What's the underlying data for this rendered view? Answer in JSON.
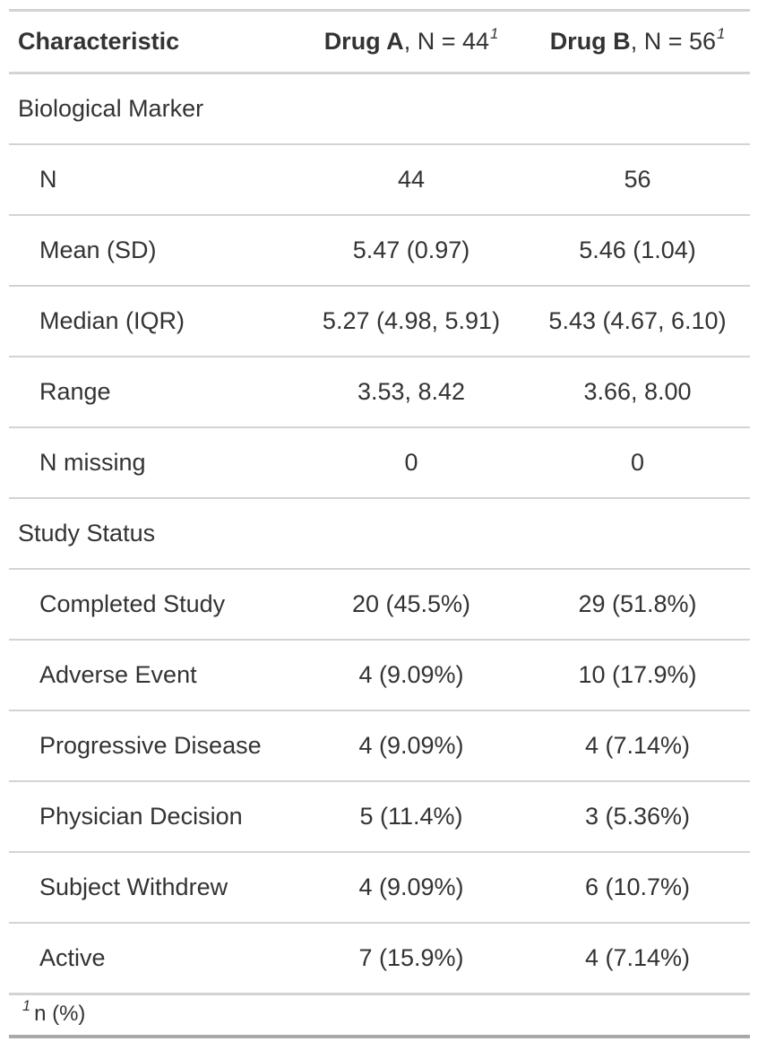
{
  "chart_data": {
    "type": "table",
    "header": {
      "characteristic": "Characteristic",
      "drug_a": {
        "label": "Drug A",
        "n_text": ", N = 44",
        "footnote_mark": "1"
      },
      "drug_b": {
        "label": "Drug B",
        "n_text": ", N = 56",
        "footnote_mark": "1"
      }
    },
    "columns": [
      "Characteristic",
      "Drug A, N = 44",
      "Drug B, N = 56"
    ],
    "rows": [
      {
        "type": "group",
        "label": "Biological Marker",
        "drug_a": "",
        "drug_b": ""
      },
      {
        "type": "item",
        "label": "N",
        "drug_a": "44",
        "drug_b": "56"
      },
      {
        "type": "item",
        "label": "Mean (SD)",
        "drug_a": "5.47 (0.97)",
        "drug_b": "5.46 (1.04)"
      },
      {
        "type": "item",
        "label": "Median (IQR)",
        "drug_a": "5.27 (4.98, 5.91)",
        "drug_b": "5.43 (4.67, 6.10)"
      },
      {
        "type": "item",
        "label": "Range",
        "drug_a": "3.53, 8.42",
        "drug_b": "3.66, 8.00"
      },
      {
        "type": "item",
        "label": "N missing",
        "drug_a": "0",
        "drug_b": "0"
      },
      {
        "type": "group",
        "label": "Study Status",
        "drug_a": "",
        "drug_b": ""
      },
      {
        "type": "item",
        "label": "Completed Study",
        "drug_a": "20 (45.5%)",
        "drug_b": "29 (51.8%)"
      },
      {
        "type": "item",
        "label": "Adverse Event",
        "drug_a": "4 (9.09%)",
        "drug_b": "10 (17.9%)"
      },
      {
        "type": "item",
        "label": "Progressive Disease",
        "drug_a": "4 (9.09%)",
        "drug_b": "4 (7.14%)"
      },
      {
        "type": "item",
        "label": "Physician Decision",
        "drug_a": "5 (11.4%)",
        "drug_b": "3 (5.36%)"
      },
      {
        "type": "item",
        "label": "Subject Withdrew",
        "drug_a": "4 (9.09%)",
        "drug_b": "6 (10.7%)"
      },
      {
        "type": "item",
        "label": "Active",
        "drug_a": "7 (15.9%)",
        "drug_b": "4 (7.14%)"
      }
    ],
    "footnote": {
      "mark": "1",
      "text": "n (%)"
    }
  },
  "colors": {
    "text": "#333333",
    "row_border": "#D3D3D3",
    "table_bottom_border": "#A9A9A9",
    "background": "#FFFFFF"
  }
}
